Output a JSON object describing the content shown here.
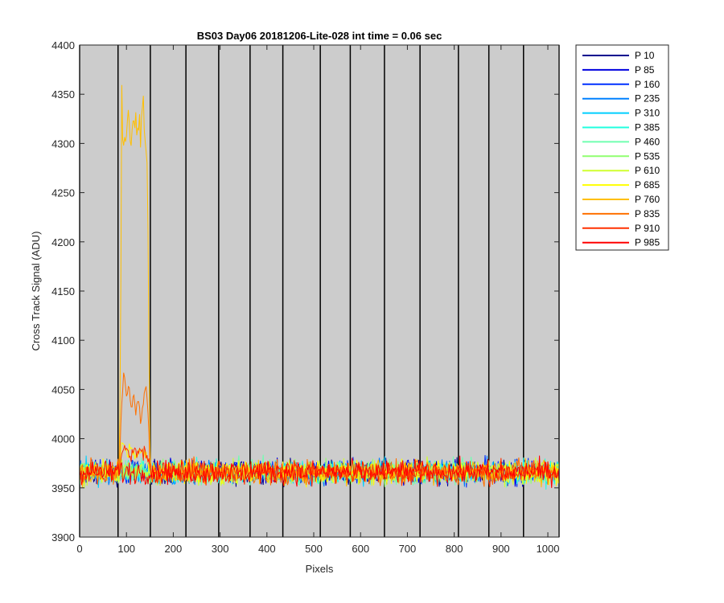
{
  "chart_data": {
    "type": "line",
    "title": "BS03 Day06 20181206-Lite-028 int time = 0.06 sec",
    "xlabel": "Pixels",
    "ylabel": "Cross Track Signal (ADU)",
    "xlim": [
      0,
      1024
    ],
    "ylim": [
      3900,
      4400
    ],
    "xticks": [
      0,
      100,
      200,
      300,
      400,
      500,
      600,
      700,
      800,
      900,
      1000
    ],
    "yticks": [
      3900,
      3950,
      4000,
      4050,
      4100,
      4150,
      4200,
      4250,
      4300,
      4350,
      4400
    ],
    "background": "#cccccc",
    "grid": false,
    "legend_position": "outside-right-top",
    "vlines": [
      0,
      82,
      151,
      227,
      297,
      364,
      434,
      514,
      578,
      651,
      727,
      809,
      874,
      948,
      1024
    ],
    "baseline": 3966,
    "noise_amplitude": 12,
    "series": [
      {
        "name": "P 10",
        "color": "#00008f"
      },
      {
        "name": "P 85",
        "color": "#0000df"
      },
      {
        "name": "P 160",
        "color": "#0030ff"
      },
      {
        "name": "P 235",
        "color": "#0080ff"
      },
      {
        "name": "P 310",
        "color": "#00cfff"
      },
      {
        "name": "P 385",
        "color": "#20ffdf"
      },
      {
        "name": "P 460",
        "color": "#70ffb0"
      },
      {
        "name": "P 535",
        "color": "#90ff70"
      },
      {
        "name": "P 610",
        "color": "#d0ff30"
      },
      {
        "name": "P 685",
        "color": "#ffff00"
      },
      {
        "name": "P 760",
        "color": "#ffbf00"
      },
      {
        "name": "P 835",
        "color": "#ff7000"
      },
      {
        "name": "P 910",
        "color": "#ff3000"
      },
      {
        "name": "P 985",
        "color": "#ff0000"
      }
    ],
    "peaks": [
      {
        "series": "P 760",
        "x_start": 85,
        "x_end": 150,
        "x_values": [
          85,
          88,
          90,
          93,
          97,
          100,
          105,
          110,
          115,
          120,
          125,
          130,
          135,
          140,
          145,
          150
        ],
        "y_values": [
          3970,
          4160,
          4345,
          4300,
          4330,
          4305,
          4340,
          4290,
          4330,
          4310,
          4320,
          4300,
          4345,
          4300,
          4270,
          4000
        ]
      },
      {
        "series": "P 835",
        "x_start": 85,
        "x_end": 150,
        "x_values": [
          85,
          90,
          95,
          100,
          105,
          110,
          115,
          120,
          125,
          130,
          135,
          140,
          145,
          150
        ],
        "y_values": [
          3970,
          4040,
          4065,
          4045,
          4055,
          4030,
          4045,
          4025,
          4040,
          4015,
          4035,
          4050,
          4045,
          3975
        ]
      },
      {
        "series": "P 685",
        "x_start": 85,
        "x_end": 150,
        "x_values": [
          85,
          90,
          95,
          100,
          110,
          120,
          130,
          140,
          150
        ],
        "y_values": [
          3975,
          3995,
          3990,
          3985,
          3990,
          3985,
          3990,
          3985,
          3975
        ]
      },
      {
        "series": "P 910",
        "x_start": 85,
        "x_end": 150,
        "x_values": [
          85,
          90,
          100,
          110,
          120,
          130,
          140,
          150
        ],
        "y_values": [
          3972,
          3985,
          3988,
          3983,
          3990,
          3985,
          3988,
          3972
        ]
      }
    ]
  }
}
